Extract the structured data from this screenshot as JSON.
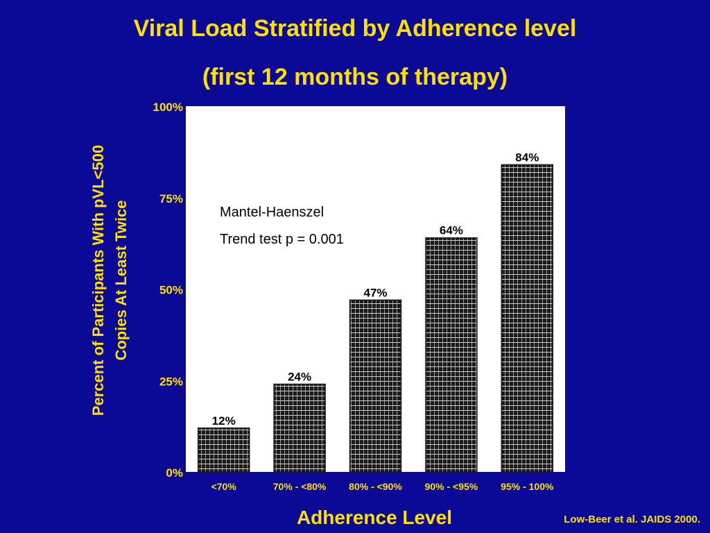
{
  "title_line1": "Viral Load Stratified by Adherence level",
  "title_line2": "(first 12 months of  therapy)",
  "source": "Low-Beer et al. JAIDS 2000.",
  "colors": {
    "background": "#0a0a96",
    "text_accent": "#ffe000",
    "plot_background": "#ffffff",
    "bar_fill": "#1a1a1a"
  },
  "chart_data": {
    "type": "bar",
    "categories": [
      "<70%",
      "70% - <80%",
      "80% - <90%",
      "90% - <95%",
      "95% - 100%"
    ],
    "values": [
      12,
      24,
      47,
      64,
      84
    ],
    "data_labels": [
      "12%",
      "24%",
      "47%",
      "64%",
      "84%"
    ],
    "xlabel": "Adherence Level",
    "ylabel_line1": "Percent of Participants With pVL<500",
    "ylabel_line2": "Copies At Least Twice",
    "ylim": [
      0,
      100
    ],
    "yticks": [
      0,
      25,
      50,
      75,
      100
    ],
    "ytick_labels": [
      "0%",
      "25%",
      "50%",
      "75%",
      "100%"
    ],
    "annotation_line1": "Mantel-Haenszel",
    "annotation_line2": "Trend test p = 0.001",
    "grid": false,
    "legend": "none"
  }
}
